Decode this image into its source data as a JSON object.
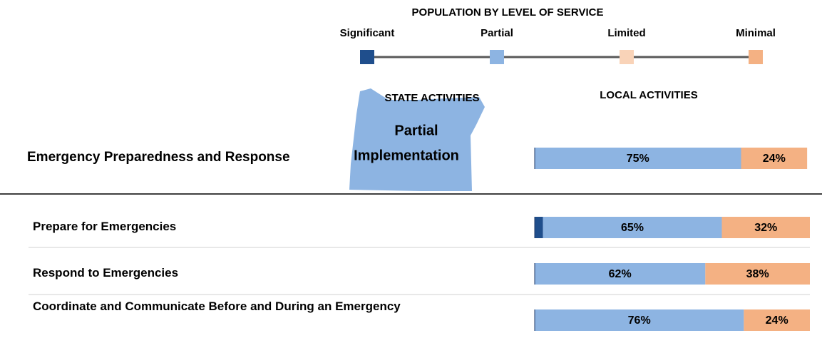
{
  "chart_data": {
    "type": "stacked-bar",
    "title": "POPULATION BY LEVEL OF SERVICE",
    "annotations": [
      "STATE ACTIVITIES",
      "LOCAL ACTIVITIES",
      "Partial",
      "Implementation"
    ],
    "categories": [
      "Emergency Preparedness and Response",
      "Prepare for Emergencies",
      "Respond to Emergencies",
      "Coordinate and Communicate Before and During an Emergency"
    ],
    "xlim": [
      0,
      100
    ],
    "series": [
      {
        "name": "Significant",
        "color": "#1f4e8c",
        "values": [
          null,
          3,
          null,
          null
        ],
        "value_labels": [
          null,
          "3%",
          null,
          null
        ]
      },
      {
        "name": "Partial",
        "color": "#8db4e2",
        "values": [
          75,
          65,
          62,
          76
        ],
        "value_labels": [
          "75%",
          "65%",
          "62%",
          "76%"
        ]
      },
      {
        "name": "Limited",
        "color": "#f9d3b8",
        "values": [
          null,
          null,
          null,
          null
        ],
        "value_labels": [
          null,
          null,
          null,
          null
        ]
      },
      {
        "name": "Minimal",
        "color": "#f4b183",
        "values": [
          24,
          32,
          38,
          24
        ],
        "value_labels": [
          "24%",
          "32%",
          "38%",
          "24%"
        ]
      }
    ]
  }
}
